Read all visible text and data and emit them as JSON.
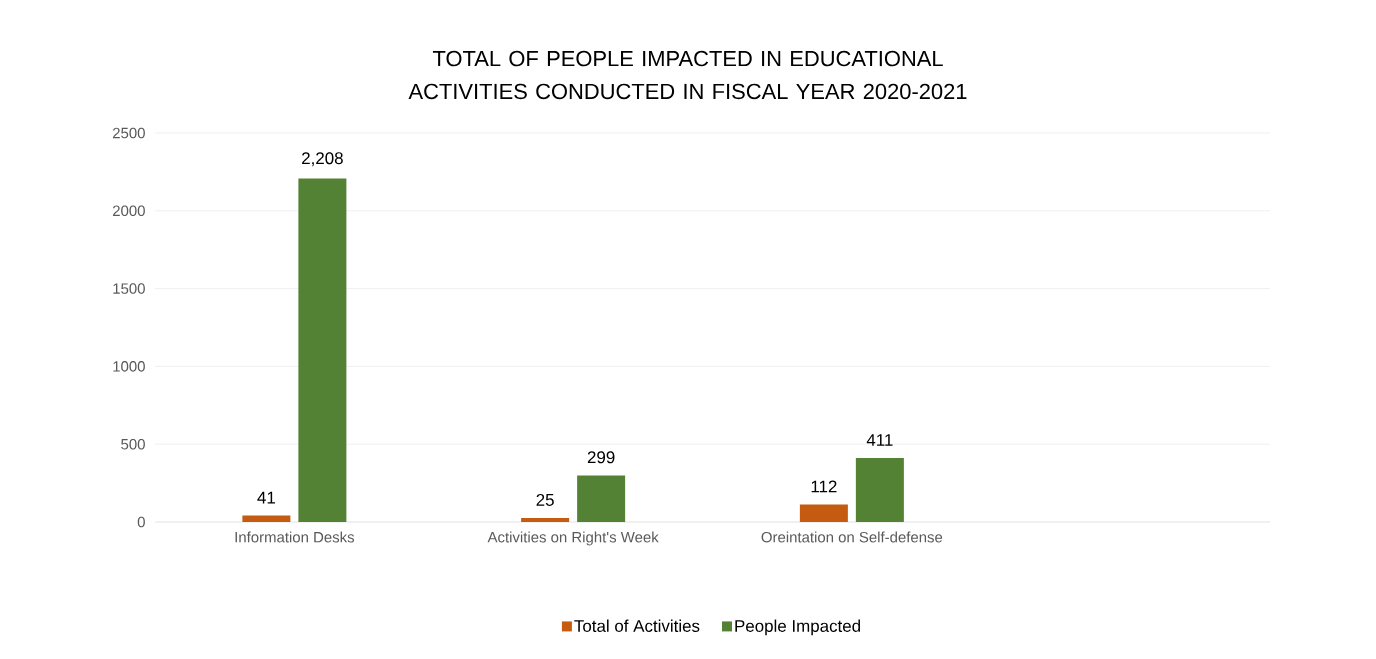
{
  "chart_data": {
    "type": "bar",
    "title": "TOTAL OF PEOPLE IMPACTED IN EDUCATIONAL ACTIVITIES CONDUCTED IN FISCAL YEAR 2020-2021",
    "categories": [
      "Information Desks",
      "Activities on Right's Week",
      "Oreintation on Self-defense",
      null
    ],
    "series": [
      {
        "name": "Total of Activities",
        "color": "#c55a11",
        "values": [
          41,
          25,
          112,
          null
        ],
        "value_labels": [
          "41",
          "25",
          "112",
          null
        ]
      },
      {
        "name": "People Impacted",
        "color": "#548235",
        "values": [
          2208,
          299,
          411,
          null
        ],
        "value_labels": [
          "2,208",
          "299",
          "411",
          null
        ]
      }
    ],
    "ylim": [
      0,
      2500
    ],
    "yticks": [
      0,
      500,
      1000,
      1500,
      2000,
      2500
    ],
    "grid": "y",
    "legend": "bottom"
  }
}
